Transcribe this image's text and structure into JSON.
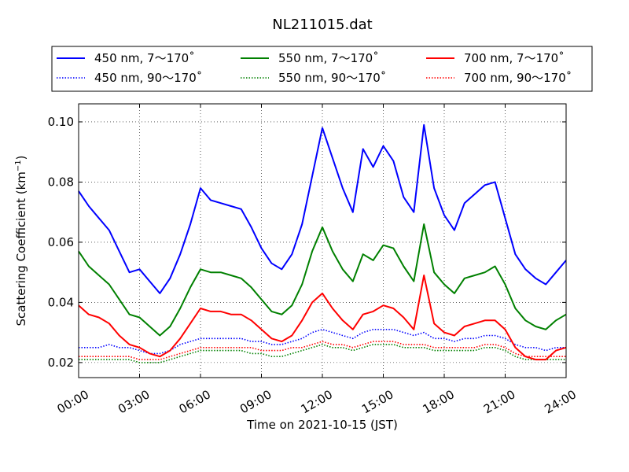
{
  "chart_data": {
    "type": "line",
    "title": "NL211015.dat",
    "xlabel": "Time on 2021-10-15 (JST)",
    "ylabel_main": "Scattering Coefficient (km",
    "ylabel_sup": "−1",
    "ylabel_close": ")",
    "xlim": [
      0,
      24
    ],
    "ylim": [
      0.015,
      0.106
    ],
    "grid": true,
    "legend_position": "top (outside plot, 3 columns)",
    "x_ticks": [
      0,
      3,
      6,
      9,
      12,
      15,
      18,
      21,
      24
    ],
    "x_tick_labels": [
      "00:00",
      "03:00",
      "06:00",
      "09:00",
      "12:00",
      "15:00",
      "18:00",
      "21:00",
      "24:00"
    ],
    "y_ticks": [
      0.02,
      0.04,
      0.06,
      0.08,
      0.1
    ],
    "y_tick_labels": [
      "0.02",
      "0.04",
      "0.06",
      "0.08",
      "0.10"
    ],
    "x_hours": [
      0,
      0.5,
      1,
      1.5,
      2,
      2.5,
      3,
      3.5,
      4,
      4.5,
      5,
      5.5,
      6,
      6.5,
      7,
      7.5,
      8,
      8.5,
      9,
      9.5,
      10,
      10.5,
      11,
      11.5,
      12,
      12.5,
      13,
      13.5,
      14,
      14.5,
      15,
      15.5,
      16,
      16.5,
      17,
      17.5,
      18,
      18.5,
      19,
      19.5,
      20,
      20.5,
      21,
      21.5,
      22,
      22.5,
      23,
      23.5,
      24
    ],
    "series": [
      {
        "name": "450 nm, 7～170˚",
        "color": "#0000ff",
        "style": "solid",
        "values": [
          0.077,
          0.072,
          0.068,
          0.064,
          0.057,
          0.05,
          0.051,
          0.047,
          0.043,
          0.048,
          0.056,
          0.066,
          0.078,
          0.074,
          0.073,
          0.072,
          0.071,
          0.065,
          0.058,
          0.053,
          0.051,
          0.056,
          0.066,
          0.082,
          0.098,
          0.088,
          0.078,
          0.07,
          0.091,
          0.085,
          0.092,
          0.087,
          0.075,
          0.07,
          0.099,
          0.078,
          0.069,
          0.064,
          0.073,
          0.076,
          0.079,
          0.08,
          0.068,
          0.056,
          0.051,
          0.048,
          0.046,
          0.05,
          0.054
        ]
      },
      {
        "name": "450 nm, 90～170˚",
        "color": "#0000ff",
        "style": "dotted",
        "values": [
          0.025,
          0.025,
          0.025,
          0.026,
          0.025,
          0.025,
          0.024,
          0.023,
          0.023,
          0.024,
          0.026,
          0.027,
          0.028,
          0.028,
          0.028,
          0.028,
          0.028,
          0.027,
          0.027,
          0.026,
          0.026,
          0.027,
          0.028,
          0.03,
          0.031,
          0.03,
          0.029,
          0.028,
          0.03,
          0.031,
          0.031,
          0.031,
          0.03,
          0.029,
          0.03,
          0.028,
          0.028,
          0.027,
          0.028,
          0.028,
          0.029,
          0.029,
          0.028,
          0.026,
          0.025,
          0.025,
          0.024,
          0.025,
          0.025
        ]
      },
      {
        "name": "550 nm, 7～170˚",
        "color": "#008000",
        "style": "solid",
        "values": [
          0.057,
          0.052,
          0.049,
          0.046,
          0.041,
          0.036,
          0.035,
          0.032,
          0.029,
          0.032,
          0.038,
          0.045,
          0.051,
          0.05,
          0.05,
          0.049,
          0.048,
          0.045,
          0.041,
          0.037,
          0.036,
          0.039,
          0.046,
          0.057,
          0.065,
          0.057,
          0.051,
          0.047,
          0.056,
          0.054,
          0.059,
          0.058,
          0.052,
          0.047,
          0.066,
          0.05,
          0.046,
          0.043,
          0.048,
          0.049,
          0.05,
          0.052,
          0.046,
          0.038,
          0.034,
          0.032,
          0.031,
          0.034,
          0.036
        ]
      },
      {
        "name": "550 nm, 90～170˚",
        "color": "#008000",
        "style": "dotted",
        "values": [
          0.021,
          0.021,
          0.021,
          0.021,
          0.021,
          0.021,
          0.02,
          0.02,
          0.02,
          0.021,
          0.022,
          0.023,
          0.024,
          0.024,
          0.024,
          0.024,
          0.024,
          0.023,
          0.023,
          0.022,
          0.022,
          0.023,
          0.024,
          0.025,
          0.026,
          0.025,
          0.025,
          0.024,
          0.025,
          0.026,
          0.026,
          0.026,
          0.025,
          0.025,
          0.025,
          0.024,
          0.024,
          0.024,
          0.024,
          0.024,
          0.025,
          0.025,
          0.024,
          0.022,
          0.021,
          0.021,
          0.021,
          0.021,
          0.021
        ]
      },
      {
        "name": "700 nm, 7～170˚",
        "color": "#ff0000",
        "style": "solid",
        "values": [
          0.039,
          0.036,
          0.035,
          0.033,
          0.029,
          0.026,
          0.025,
          0.023,
          0.022,
          0.024,
          0.028,
          0.033,
          0.038,
          0.037,
          0.037,
          0.036,
          0.036,
          0.034,
          0.031,
          0.028,
          0.027,
          0.029,
          0.034,
          0.04,
          0.043,
          0.038,
          0.034,
          0.031,
          0.036,
          0.037,
          0.039,
          0.038,
          0.035,
          0.031,
          0.049,
          0.033,
          0.03,
          0.029,
          0.032,
          0.033,
          0.034,
          0.034,
          0.031,
          0.025,
          0.022,
          0.021,
          0.021,
          0.024,
          0.025
        ]
      },
      {
        "name": "700 nm, 90～170˚",
        "color": "#ff0000",
        "style": "dotted",
        "values": [
          0.022,
          0.022,
          0.022,
          0.022,
          0.022,
          0.022,
          0.021,
          0.021,
          0.021,
          0.022,
          0.023,
          0.024,
          0.025,
          0.025,
          0.025,
          0.025,
          0.025,
          0.025,
          0.024,
          0.024,
          0.024,
          0.025,
          0.025,
          0.026,
          0.027,
          0.026,
          0.026,
          0.025,
          0.026,
          0.027,
          0.027,
          0.027,
          0.026,
          0.026,
          0.026,
          0.025,
          0.025,
          0.025,
          0.025,
          0.025,
          0.026,
          0.026,
          0.025,
          0.023,
          0.022,
          0.022,
          0.022,
          0.022,
          0.022
        ]
      }
    ]
  }
}
